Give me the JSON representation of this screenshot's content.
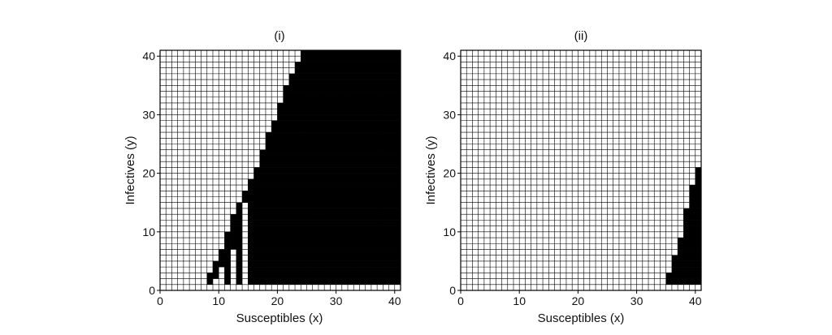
{
  "chart_data": [
    {
      "type": "heatmap",
      "title": "(i)",
      "xlabel": "Susceptibles (x)",
      "ylabel": "Infectives (y)",
      "xlim": [
        0,
        41
      ],
      "ylim": [
        0,
        41
      ],
      "xticks": [
        "0",
        "10",
        "20",
        "30",
        "40"
      ],
      "yticks": [
        "0",
        "10",
        "20",
        "30",
        "40"
      ],
      "grid": true,
      "cell_colors": {
        "empty": "#ffffff",
        "filled": "#000000",
        "gridline": "#000000"
      },
      "filled_runs": [
        {
          "y": 1,
          "runs": [
            [
              8,
              8
            ],
            [
              11,
              11
            ],
            [
              13,
              13
            ],
            [
              15,
              40
            ]
          ]
        },
        {
          "y": 2,
          "runs": [
            [
              8,
              9
            ],
            [
              11,
              11
            ],
            [
              13,
              13
            ],
            [
              15,
              40
            ]
          ]
        },
        {
          "y": 3,
          "runs": [
            [
              9,
              9
            ],
            [
              11,
              11
            ],
            [
              13,
              13
            ],
            [
              15,
              40
            ]
          ]
        },
        {
          "y": 4,
          "runs": [
            [
              9,
              10
            ],
            [
              11,
              11
            ],
            [
              13,
              13
            ],
            [
              15,
              40
            ]
          ]
        },
        {
          "y": 5,
          "runs": [
            [
              10,
              11
            ],
            [
              13,
              13
            ],
            [
              15,
              40
            ]
          ]
        },
        {
          "y": 6,
          "runs": [
            [
              10,
              11
            ],
            [
              13,
              13
            ],
            [
              15,
              40
            ]
          ]
        },
        {
          "y": 7,
          "runs": [
            [
              11,
              11
            ],
            [
              12,
              13
            ],
            [
              15,
              40
            ]
          ]
        },
        {
          "y": 8,
          "runs": [
            [
              11,
              11
            ],
            [
              12,
              13
            ],
            [
              15,
              40
            ]
          ]
        },
        {
          "y": 9,
          "runs": [
            [
              11,
              13
            ],
            [
              15,
              40
            ]
          ]
        },
        {
          "y": 10,
          "runs": [
            [
              12,
              13
            ],
            [
              15,
              40
            ]
          ]
        },
        {
          "y": 11,
          "runs": [
            [
              12,
              13
            ],
            [
              15,
              40
            ]
          ]
        },
        {
          "y": 12,
          "runs": [
            [
              12,
              13
            ],
            [
              15,
              40
            ]
          ]
        },
        {
          "y": 13,
          "runs": [
            [
              13,
              13
            ],
            [
              15,
              40
            ]
          ]
        },
        {
          "y": 14,
          "runs": [
            [
              13,
              13
            ],
            [
              15,
              40
            ]
          ]
        },
        {
          "y": 15,
          "runs": [
            [
              14,
              40
            ]
          ]
        },
        {
          "y": 16,
          "runs": [
            [
              14,
              40
            ]
          ]
        },
        {
          "y": 17,
          "runs": [
            [
              15,
              40
            ]
          ]
        },
        {
          "y": 18,
          "runs": [
            [
              15,
              40
            ]
          ]
        },
        {
          "y": 19,
          "runs": [
            [
              16,
              40
            ]
          ]
        },
        {
          "y": 20,
          "runs": [
            [
              16,
              40
            ]
          ]
        },
        {
          "y": 21,
          "runs": [
            [
              17,
              40
            ]
          ]
        },
        {
          "y": 22,
          "runs": [
            [
              17,
              40
            ]
          ]
        },
        {
          "y": 23,
          "runs": [
            [
              17,
              40
            ]
          ]
        },
        {
          "y": 24,
          "runs": [
            [
              18,
              40
            ]
          ]
        },
        {
          "y": 25,
          "runs": [
            [
              18,
              40
            ]
          ]
        },
        {
          "y": 26,
          "runs": [
            [
              18,
              40
            ]
          ]
        },
        {
          "y": 27,
          "runs": [
            [
              19,
              40
            ]
          ]
        },
        {
          "y": 28,
          "runs": [
            [
              19,
              40
            ]
          ]
        },
        {
          "y": 29,
          "runs": [
            [
              20,
              40
            ]
          ]
        },
        {
          "y": 30,
          "runs": [
            [
              20,
              40
            ]
          ]
        },
        {
          "y": 31,
          "runs": [
            [
              20,
              40
            ]
          ]
        },
        {
          "y": 32,
          "runs": [
            [
              21,
              40
            ]
          ]
        },
        {
          "y": 33,
          "runs": [
            [
              21,
              40
            ]
          ]
        },
        {
          "y": 34,
          "runs": [
            [
              21,
              40
            ]
          ]
        },
        {
          "y": 35,
          "runs": [
            [
              22,
              40
            ]
          ]
        },
        {
          "y": 36,
          "runs": [
            [
              22,
              40
            ]
          ]
        },
        {
          "y": 37,
          "runs": [
            [
              23,
              40
            ]
          ]
        },
        {
          "y": 38,
          "runs": [
            [
              23,
              40
            ]
          ]
        },
        {
          "y": 39,
          "runs": [
            [
              24,
              40
            ]
          ]
        },
        {
          "y": 40,
          "runs": [
            [
              24,
              40
            ]
          ]
        }
      ]
    },
    {
      "type": "heatmap",
      "title": "(ii)",
      "xlabel": "Susceptibles (x)",
      "ylabel": "Infectives (y)",
      "xlim": [
        0,
        41
      ],
      "ylim": [
        0,
        41
      ],
      "xticks": [
        "0",
        "10",
        "20",
        "30",
        "40"
      ],
      "yticks": [
        "0",
        "10",
        "20",
        "30",
        "40"
      ],
      "grid": true,
      "cell_colors": {
        "empty": "#ffffff",
        "filled": "#000000",
        "gridline": "#000000"
      },
      "filled_runs": [
        {
          "y": 1,
          "runs": [
            [
              35,
              40
            ]
          ]
        },
        {
          "y": 2,
          "runs": [
            [
              35,
              40
            ]
          ]
        },
        {
          "y": 3,
          "runs": [
            [
              36,
              40
            ]
          ]
        },
        {
          "y": 4,
          "runs": [
            [
              36,
              40
            ]
          ]
        },
        {
          "y": 5,
          "runs": [
            [
              36,
              40
            ]
          ]
        },
        {
          "y": 6,
          "runs": [
            [
              37,
              40
            ]
          ]
        },
        {
          "y": 7,
          "runs": [
            [
              37,
              40
            ]
          ]
        },
        {
          "y": 8,
          "runs": [
            [
              37,
              40
            ]
          ]
        },
        {
          "y": 9,
          "runs": [
            [
              38,
              40
            ]
          ]
        },
        {
          "y": 10,
          "runs": [
            [
              38,
              40
            ]
          ]
        },
        {
          "y": 11,
          "runs": [
            [
              38,
              40
            ]
          ]
        },
        {
          "y": 12,
          "runs": [
            [
              38,
              40
            ]
          ]
        },
        {
          "y": 13,
          "runs": [
            [
              38,
              40
            ]
          ]
        },
        {
          "y": 14,
          "runs": [
            [
              39,
              40
            ]
          ]
        },
        {
          "y": 15,
          "runs": [
            [
              39,
              40
            ]
          ]
        },
        {
          "y": 16,
          "runs": [
            [
              39,
              40
            ]
          ]
        },
        {
          "y": 17,
          "runs": [
            [
              39,
              40
            ]
          ]
        },
        {
          "y": 18,
          "runs": [
            [
              40,
              40
            ]
          ]
        },
        {
          "y": 19,
          "runs": [
            [
              40,
              40
            ]
          ]
        },
        {
          "y": 20,
          "runs": [
            [
              40,
              40
            ]
          ]
        }
      ]
    }
  ]
}
